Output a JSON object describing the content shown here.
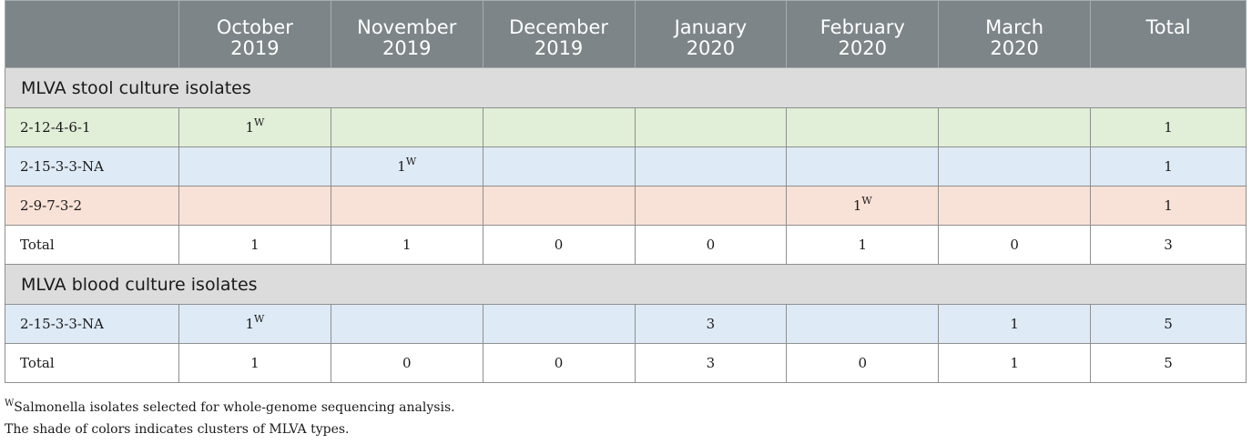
{
  "columns": [
    {
      "line1": "",
      "line2": ""
    },
    {
      "line1": "October",
      "line2": "2019"
    },
    {
      "line1": "November",
      "line2": "2019"
    },
    {
      "line1": "December",
      "line2": "2019"
    },
    {
      "line1": "January",
      "line2": "2020"
    },
    {
      "line1": "February",
      "line2": "2020"
    },
    {
      "line1": "March",
      "line2": "2020"
    },
    {
      "line1": "Total",
      "line2": ""
    }
  ],
  "sections": [
    {
      "title": "MLVA stool culture isolates",
      "rows": [
        {
          "label": "2-12-4-6-1",
          "values": [
            "1",
            "",
            "",
            "",
            "",
            ""
          ],
          "sup": [
            "W",
            "",
            "",
            "",
            "",
            ""
          ],
          "total": "1",
          "color": "#e1eed8"
        },
        {
          "label": "2-15-3-3-NA",
          "values": [
            "",
            "1",
            "",
            "",
            "",
            ""
          ],
          "sup": [
            "",
            "W",
            "",
            "",
            "",
            ""
          ],
          "total": "1",
          "color": "#deeaf5"
        },
        {
          "label": "2-9-7-3-2",
          "values": [
            "",
            "",
            "",
            "",
            "1",
            ""
          ],
          "sup": [
            "",
            "",
            "",
            "",
            "W",
            ""
          ],
          "total": "1",
          "color": "#f8e1d6"
        },
        {
          "label": "Total",
          "values": [
            "1",
            "1",
            "0",
            "0",
            "1",
            "0"
          ],
          "sup": [
            "",
            "",
            "",
            "",
            "",
            ""
          ],
          "total": "3",
          "color": "#ffffff"
        }
      ]
    },
    {
      "title": "MLVA blood culture isolates",
      "rows": [
        {
          "label": "2-15-3-3-NA",
          "values": [
            "1",
            "",
            "",
            "3",
            "",
            "1"
          ],
          "sup": [
            "W",
            "",
            "",
            "",
            "",
            ""
          ],
          "total": "5",
          "color": "#deeaf5"
        },
        {
          "label": "Total",
          "values": [
            "1",
            "0",
            "0",
            "3",
            "0",
            "1"
          ],
          "sup": [
            "",
            "",
            "",
            "",
            "",
            ""
          ],
          "total": "5",
          "color": "#ffffff"
        }
      ]
    }
  ],
  "footnotes": {
    "note1_sup": "W",
    "note1_text": "Salmonella isolates selected for whole-genome sequencing analysis.",
    "note2_text": "The shade of colors indicates clusters of MLVA types."
  }
}
